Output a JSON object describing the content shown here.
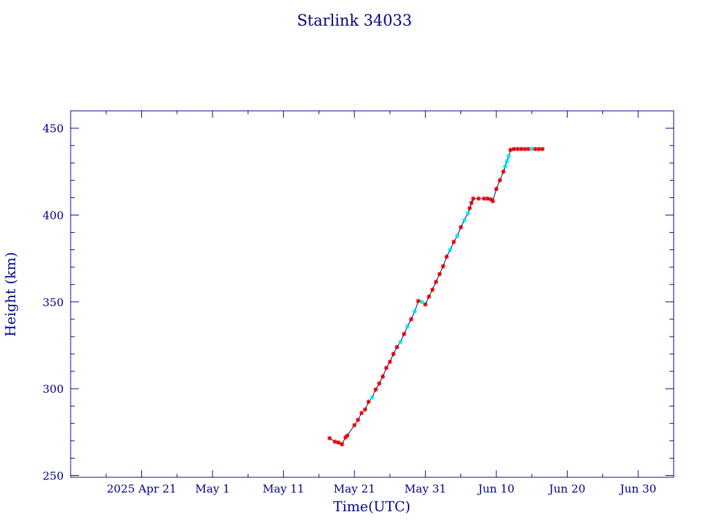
{
  "chart_data": {
    "type": "scatter",
    "title": "Starlink 34033",
    "xlabel": "Time(UTC)",
    "ylabel": "Height (km)",
    "x_unit": "date",
    "xlim": [
      "2025-04-11",
      "2025-07-05"
    ],
    "ylim": [
      249,
      460
    ],
    "x_tick_labels": [
      {
        "date": "2025-04-21",
        "label": "2025 Apr 21"
      },
      {
        "date": "2025-05-01",
        "label": "May  1"
      },
      {
        "date": "2025-05-11",
        "label": "May 11"
      },
      {
        "date": "2025-05-21",
        "label": "May 21"
      },
      {
        "date": "2025-05-31",
        "label": "May 31"
      },
      {
        "date": "2025-06-10",
        "label": "Jun 10"
      },
      {
        "date": "2025-06-20",
        "label": "Jun 20"
      },
      {
        "date": "2025-06-30",
        "label": "Jun 30"
      }
    ],
    "x_minor_ticks": [
      "2025-04-16",
      "2025-04-26",
      "2025-05-06",
      "2025-05-16",
      "2025-05-26",
      "2025-06-05",
      "2025-06-15",
      "2025-06-25",
      "2025-07-05"
    ],
    "y_ticks": [
      250,
      300,
      350,
      400,
      450
    ],
    "y_minor_step": 10,
    "grid": false,
    "legend": "none",
    "colors": {
      "axes": "#00008b",
      "line": "#00008b",
      "marker_primary": "#e00000",
      "marker_secondary": "#00e5ee"
    },
    "series": [
      {
        "line": true,
        "points": [
          {
            "x": "2025-05-17T12:00",
            "y": 271.5,
            "c": "red"
          },
          {
            "x": "2025-05-18T06:00",
            "y": 269.5,
            "c": "red"
          },
          {
            "x": "2025-05-18T18:00",
            "y": 269.0,
            "c": "red"
          },
          {
            "x": "2025-05-19T06:00",
            "y": 268.0,
            "c": "red"
          },
          {
            "x": "2025-05-19T18:00",
            "y": 272.0,
            "c": "red"
          },
          {
            "x": "2025-05-20T00:00",
            "y": 273.0,
            "c": "red"
          },
          {
            "x": "2025-05-21T00:00",
            "y": 279.0,
            "c": "red"
          },
          {
            "x": "2025-05-21T12:00",
            "y": 282.0,
            "c": "red"
          },
          {
            "x": "2025-05-22T00:00",
            "y": 286.0,
            "c": "red"
          },
          {
            "x": "2025-05-22T12:00",
            "y": 288.0,
            "c": "red"
          },
          {
            "x": "2025-05-23T00:00",
            "y": 292.5,
            "c": "red"
          },
          {
            "x": "2025-05-23T12:00",
            "y": 295.0,
            "c": "cyan"
          },
          {
            "x": "2025-05-24T00:00",
            "y": 299.5,
            "c": "red"
          },
          {
            "x": "2025-05-24T12:00",
            "y": 303.0,
            "c": "red"
          },
          {
            "x": "2025-05-25T00:00",
            "y": 307.0,
            "c": "red"
          },
          {
            "x": "2025-05-25T12:00",
            "y": 312.0,
            "c": "red"
          },
          {
            "x": "2025-05-26T00:00",
            "y": 315.5,
            "c": "red"
          },
          {
            "x": "2025-05-26T12:00",
            "y": 320.0,
            "c": "red"
          },
          {
            "x": "2025-05-27T00:00",
            "y": 324.0,
            "c": "red"
          },
          {
            "x": "2025-05-27T12:00",
            "y": 327.0,
            "c": "cyan"
          },
          {
            "x": "2025-05-28T00:00",
            "y": 331.5,
            "c": "red"
          },
          {
            "x": "2025-05-28T12:00",
            "y": 336.0,
            "c": "cyan"
          },
          {
            "x": "2025-05-29T00:00",
            "y": 340.0,
            "c": "red"
          },
          {
            "x": "2025-05-29T12:00",
            "y": 344.5,
            "c": "cyan"
          },
          {
            "x": "2025-05-30T00:00",
            "y": 350.5,
            "c": "red"
          },
          {
            "x": "2025-05-30T12:00",
            "y": 350.0,
            "c": "cyan"
          },
          {
            "x": "2025-05-31T00:00",
            "y": 348.5,
            "c": "red"
          },
          {
            "x": "2025-05-31T12:00",
            "y": 353.0,
            "c": "red"
          },
          {
            "x": "2025-06-01T00:00",
            "y": 357.0,
            "c": "red"
          },
          {
            "x": "2025-06-01T12:00",
            "y": 361.5,
            "c": "red"
          },
          {
            "x": "2025-06-02T00:00",
            "y": 366.0,
            "c": "red"
          },
          {
            "x": "2025-06-02T12:00",
            "y": 370.5,
            "c": "red"
          },
          {
            "x": "2025-06-03T00:00",
            "y": 376.0,
            "c": "red"
          },
          {
            "x": "2025-06-03T12:00",
            "y": 380.0,
            "c": "cyan"
          },
          {
            "x": "2025-06-04T00:00",
            "y": 384.5,
            "c": "red"
          },
          {
            "x": "2025-06-04T12:00",
            "y": 388.0,
            "c": "cyan"
          },
          {
            "x": "2025-06-05T00:00",
            "y": 393.0,
            "c": "red"
          },
          {
            "x": "2025-06-05T12:00",
            "y": 397.0,
            "c": "cyan"
          },
          {
            "x": "2025-06-06T00:00",
            "y": 401.0,
            "c": "cyan"
          },
          {
            "x": "2025-06-06T06:00",
            "y": 404.0,
            "c": "red"
          },
          {
            "x": "2025-06-06T12:00",
            "y": 407.0,
            "c": "red"
          },
          {
            "x": "2025-06-06T18:00",
            "y": 409.5,
            "c": "red"
          },
          {
            "x": "2025-06-07T12:00",
            "y": 409.5,
            "c": "red"
          },
          {
            "x": "2025-06-08T06:00",
            "y": 409.5,
            "c": "red"
          },
          {
            "x": "2025-06-08T18:00",
            "y": 409.5,
            "c": "red"
          },
          {
            "x": "2025-06-09T06:00",
            "y": 409.0,
            "c": "red"
          },
          {
            "x": "2025-06-09T12:00",
            "y": 408.0,
            "c": "red"
          },
          {
            "x": "2025-06-10T00:00",
            "y": 415.0,
            "c": "red"
          },
          {
            "x": "2025-06-10T12:00",
            "y": 420.0,
            "c": "red"
          },
          {
            "x": "2025-06-11T00:00",
            "y": 425.0,
            "c": "red"
          },
          {
            "x": "2025-06-11T06:00",
            "y": 428.0,
            "c": "cyan"
          },
          {
            "x": "2025-06-11T12:00",
            "y": 431.0,
            "c": "cyan"
          },
          {
            "x": "2025-06-11T18:00",
            "y": 434.0,
            "c": "cyan"
          },
          {
            "x": "2025-06-12T00:00",
            "y": 437.5,
            "c": "red"
          },
          {
            "x": "2025-06-12T12:00",
            "y": 438.0,
            "c": "red"
          },
          {
            "x": "2025-06-13T00:00",
            "y": 438.0,
            "c": "red"
          },
          {
            "x": "2025-06-13T12:00",
            "y": 438.0,
            "c": "red"
          },
          {
            "x": "2025-06-14T00:00",
            "y": 438.0,
            "c": "red"
          },
          {
            "x": "2025-06-14T12:00",
            "y": 438.0,
            "c": "red"
          },
          {
            "x": "2025-06-15T00:00",
            "y": 438.0,
            "c": "cyan"
          },
          {
            "x": "2025-06-15T12:00",
            "y": 438.0,
            "c": "red"
          },
          {
            "x": "2025-06-16T00:00",
            "y": 438.0,
            "c": "red"
          },
          {
            "x": "2025-06-16T12:00",
            "y": 438.0,
            "c": "red"
          }
        ]
      }
    ]
  }
}
